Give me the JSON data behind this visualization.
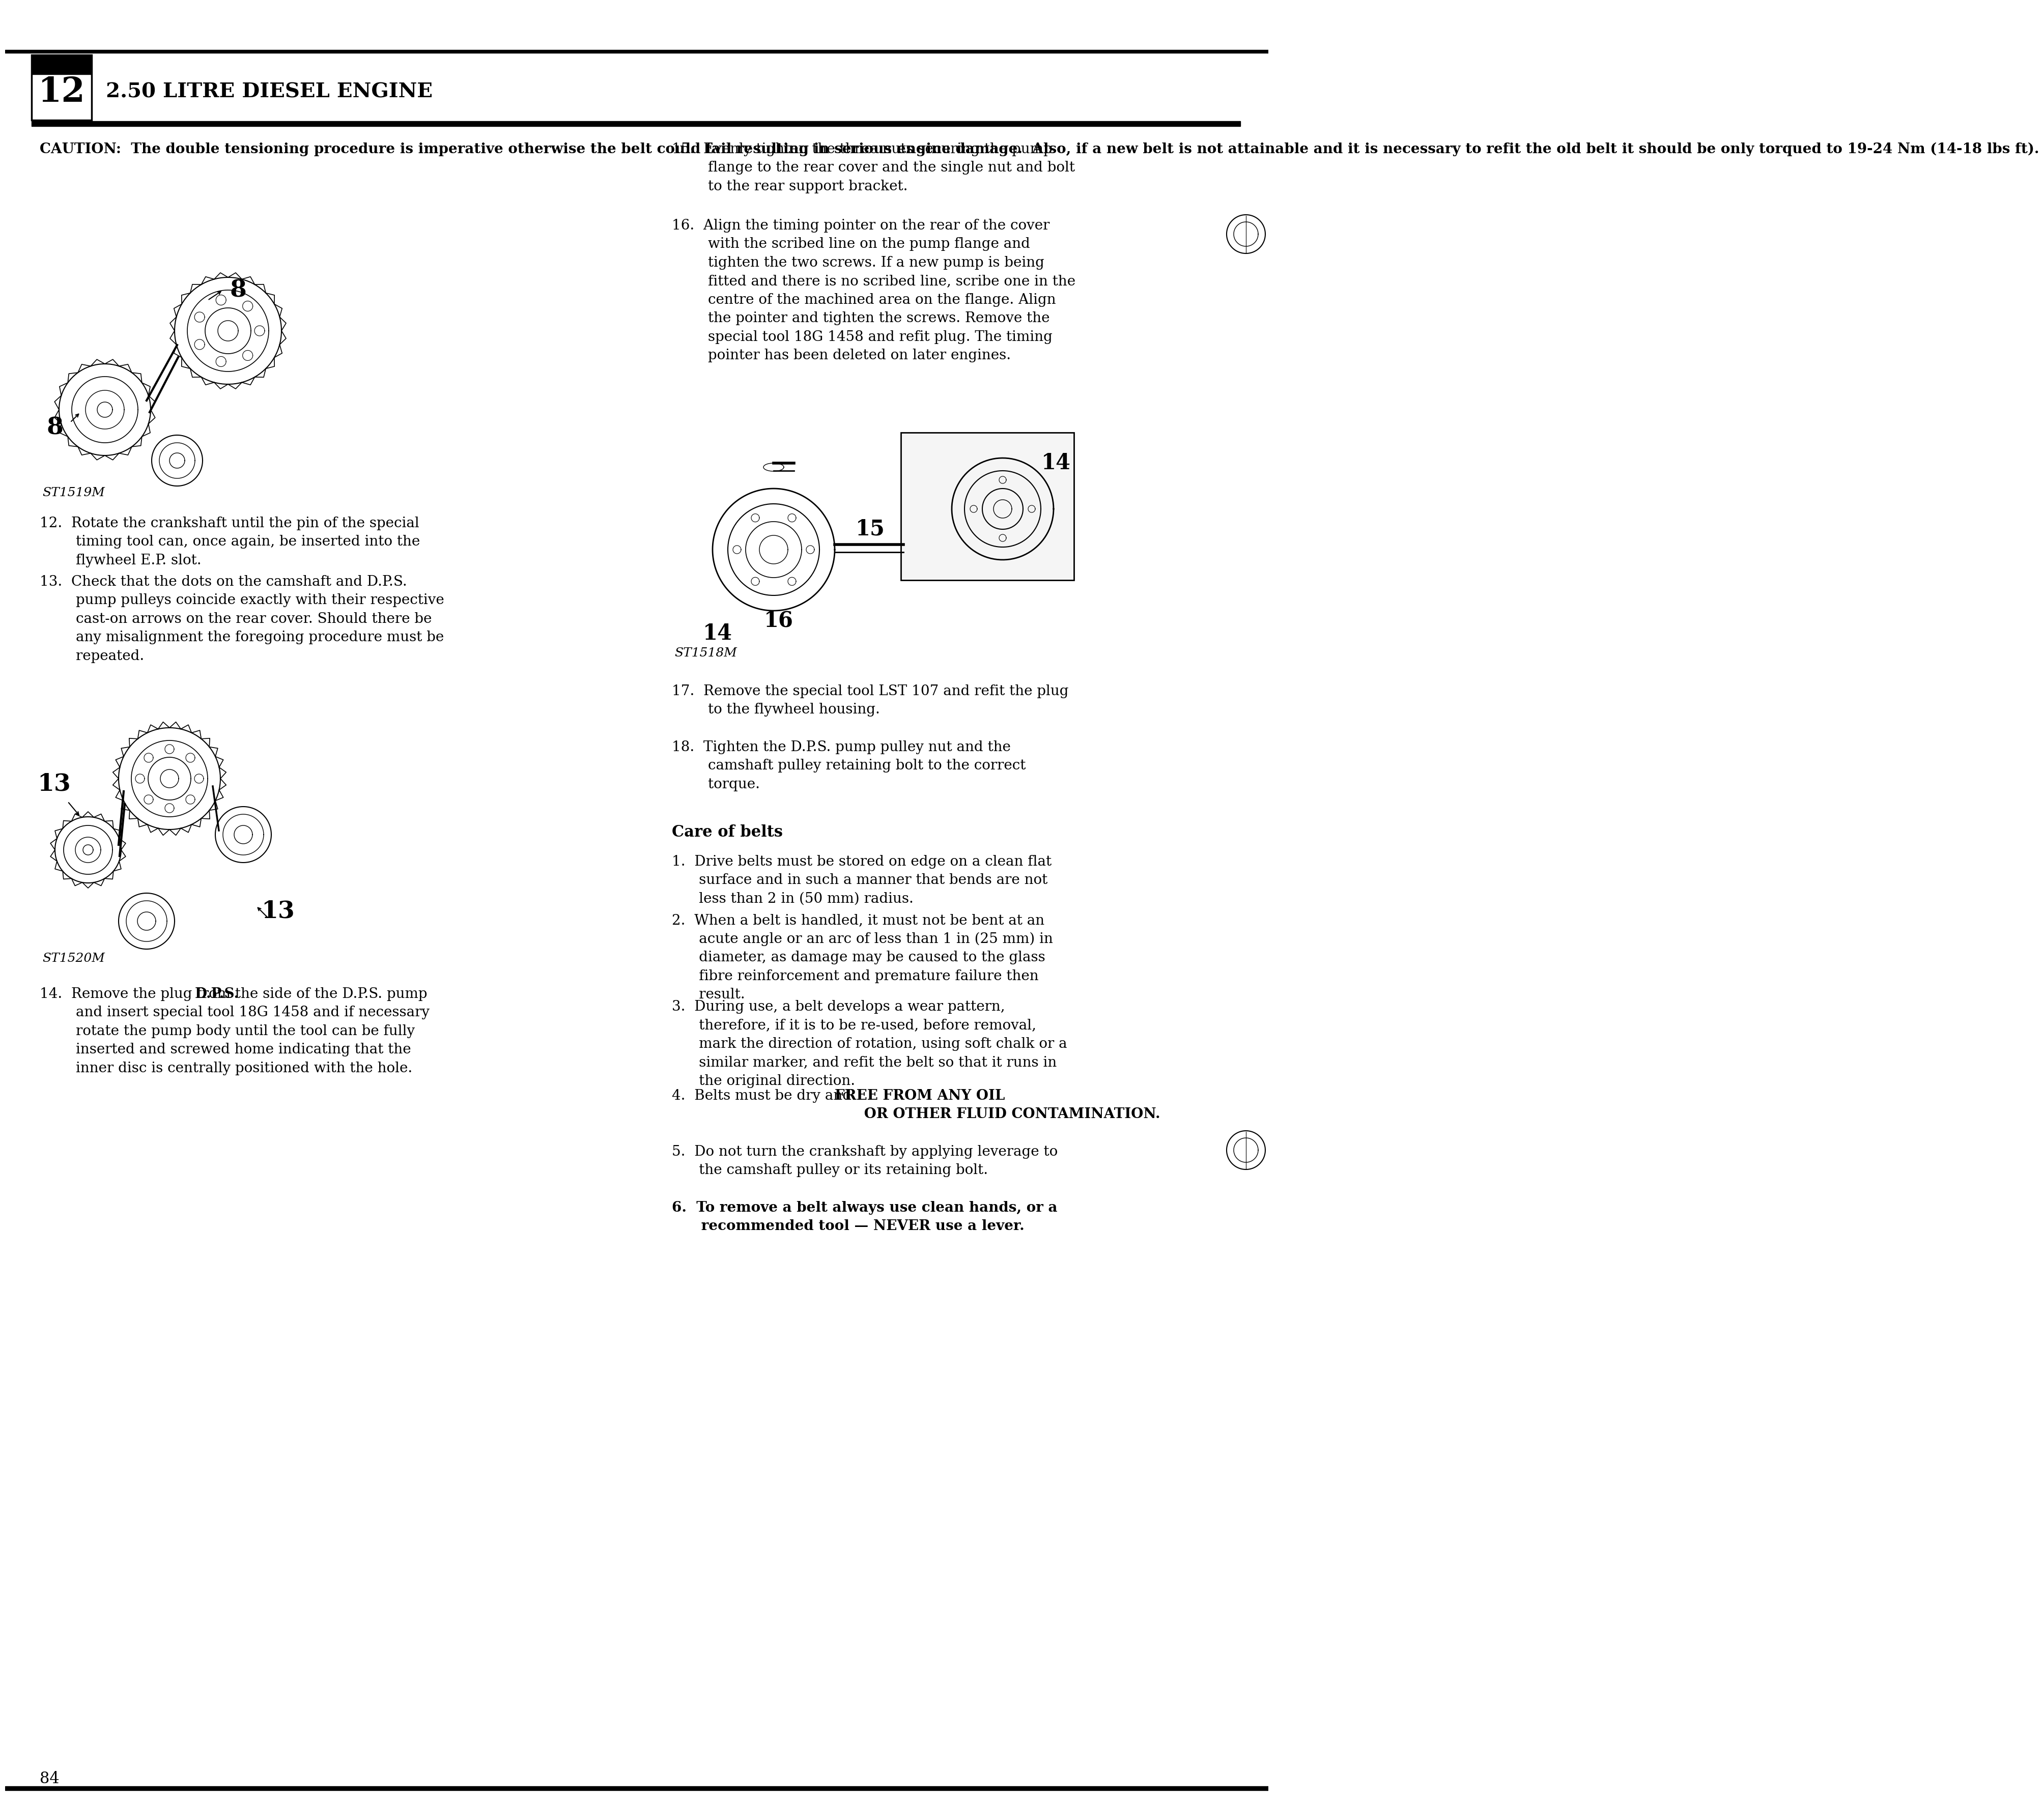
{
  "page_number": "84",
  "chapter_number": "12",
  "chapter_title": "2.50 LITRE DIESEL ENGINE",
  "bg_color": "#ffffff",
  "text_color": "#000000",
  "caution_text_bold": "CAUTION:  The double tensioning procedure is imperative otherwise the belt could fail resulting in serious engine damage.  Also, if a new belt is not attainable and it is necessary to refit the old belt it should be only torqued to 19-24 Nm (14-18 lbs ft).",
  "diagram1_label": "ST1519M",
  "diagram2_label": "ST1520M",
  "diagram3_label": "ST1518M",
  "item12": "12.  Rotate the crankshaft until the pin of the special\n        timing tool can, once again, be inserted into the\n        flywheel E.P. slot.",
  "item13": "13.  Check that the dots on the camshaft and D.P.S.\n        pump pulleys coincide exactly with their respective\n        cast-on arrows on the rear cover. Should there be\n        any misalignment the foregoing procedure must be\n        repeated.",
  "item14": "14.  Remove the plug from the side of the D.P.S. pump\n        and insert special tool 18G 1458 and if necessary\n        rotate the pump body until the tool can be fully\n        inserted and screwed home indicating that the\n        inner disc is centrally positioned with the hole.",
  "item14_bold": "D.P.S.",
  "item15": "15.  Evenly tighten the three nuts securing the pump\n        flange to the rear cover and the single nut and bolt\n        to the rear support bracket.",
  "item16": "16.  Align the timing pointer on the rear of the cover\n        with the scribed line on the pump flange and\n        tighten the two screws. If a new pump is being\n        fitted and there is no scribed line, scribe one in the\n        centre of the machined area on the flange. Align\n        the pointer and tighten the screws. Remove the\n        special tool 18G 1458 and refit plug. The timing\n        pointer has been deleted on later engines.",
  "item17": "17.  Remove the special tool LST 107 and refit the plug\n        to the flywheel housing.",
  "item18": "18.  Tighten the D.P.S. pump pulley nut and the\n        camshaft pulley retaining bolt to the correct\n        torque.",
  "care_title": "Care of belts",
  "care1": "1.  Drive belts must be stored on edge on a clean flat\n      surface and in such a manner that bends are not\n      less than 2 in (50 mm) radius.",
  "care2": "2.  When a belt is handled, it must not be bent at an\n      acute angle or an arc of less than 1 in (25 mm) in\n      diameter, as damage may be caused to the glass\n      fibre reinforcement and premature failure then\n      result.",
  "care3": "3.  During use, a belt develops a wear pattern,\n      therefore, if it is to be re-used, before removal,\n      mark the direction of rotation, using soft chalk or a\n      similar marker, and refit the belt so that it runs in\n      the original direction.",
  "care4_normal": "4.  Belts must be dry and ",
  "care4_bold": "FREE FROM ANY OIL\n      OR OTHER FLUID CONTAMINATION.",
  "care5": "5.  Do not turn the crankshaft by applying leverage to\n      the camshaft pulley or its retaining bolt.",
  "care6": "6.  To remove a belt always use clean hands, or a\n      recommended tool — NEVER use a lever."
}
